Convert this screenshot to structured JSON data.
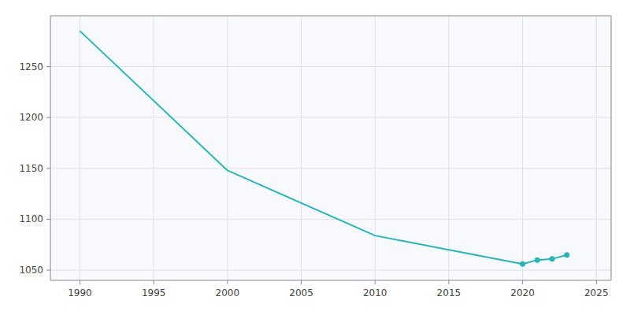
{
  "chart_data": {
    "type": "line",
    "x": [
      1990,
      2000,
      2010,
      2015,
      2020,
      2021,
      2022,
      2023
    ],
    "series": [
      {
        "type": "line",
        "line_style": "solid",
        "color": "#2ab5b5",
        "values": [
          1285,
          1148,
          1084,
          1070,
          1056,
          1060,
          1061,
          1065
        ]
      },
      {
        "type": "scatter",
        "marker": "circle",
        "color": "#2ab5b5",
        "values": [
          null,
          null,
          null,
          null,
          1056,
          1060,
          1061,
          1065
        ]
      }
    ],
    "xlim": [
      1988,
      2026
    ],
    "ylim": [
      1040,
      1300
    ],
    "xticks": [
      1990,
      1995,
      2000,
      2005,
      2010,
      2015,
      2020,
      2025
    ],
    "yticks": [
      1050,
      1100,
      1150,
      1200,
      1250
    ],
    "grid": true
  }
}
